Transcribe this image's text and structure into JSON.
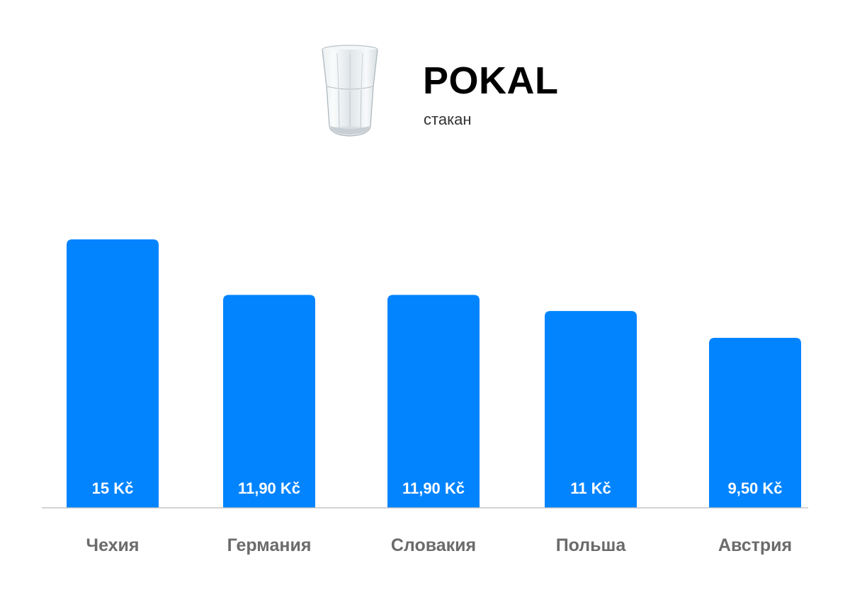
{
  "product": {
    "name": "POKAL",
    "subtitle": "стакан"
  },
  "colors": {
    "bar": "#0384FF",
    "value_label": "#FFFFFF",
    "category_label": "#6B6B6B",
    "baseline": "#BBBBBB"
  },
  "chart_data": {
    "type": "bar",
    "categories": [
      "Чехия",
      "Германия",
      "Словакия",
      "Польша",
      "Австрия"
    ],
    "values": [
      15,
      11.9,
      11.9,
      11,
      9.5
    ],
    "value_labels": [
      "15 Kč",
      "11,90 Kč",
      "11,90 Kč",
      "11 Kč",
      "9,50 Kč"
    ],
    "title": "",
    "xlabel": "",
    "ylabel": "",
    "ylim": [
      0,
      15
    ],
    "grid": false,
    "legend": "none"
  }
}
